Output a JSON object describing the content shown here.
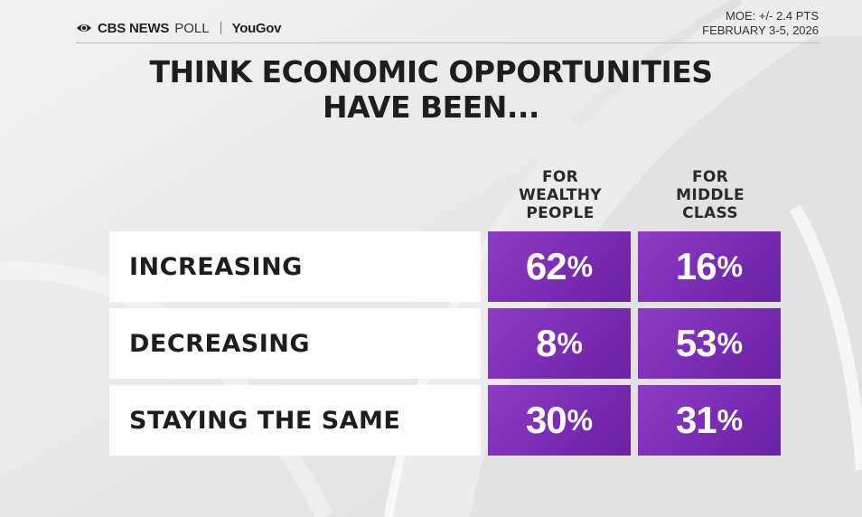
{
  "header": {
    "brand_cbs": "CBS NEWS",
    "brand_poll": "POLL",
    "brand_partner": "YouGov",
    "moe": "MOE: +/- 2.4 PTS",
    "dates": "FEBRUARY 3-5, 2026"
  },
  "title_lines": [
    "THINK ECONOMIC OPPORTUNITIES",
    "HAVE BEEN..."
  ],
  "icons": {
    "logo": "cbs-eye-icon"
  },
  "colors": {
    "cell_purple": "#7a2bb4",
    "background": "#e9e9e9",
    "label_bg": "#ffffff"
  },
  "chart_data": {
    "type": "table",
    "title": "THINK ECONOMIC OPPORTUNITIES HAVE BEEN...",
    "columns": [
      [
        "FOR",
        "WEALTHY",
        "PEOPLE"
      ],
      [
        "FOR",
        "MIDDLE",
        "CLASS"
      ]
    ],
    "rows": [
      "INCREASING",
      "DECREASING",
      "STAYING THE SAME"
    ],
    "series": [
      {
        "values": [
          62,
          8,
          30
        ]
      },
      {
        "values": [
          16,
          53,
          31
        ]
      }
    ],
    "unit": "%"
  }
}
